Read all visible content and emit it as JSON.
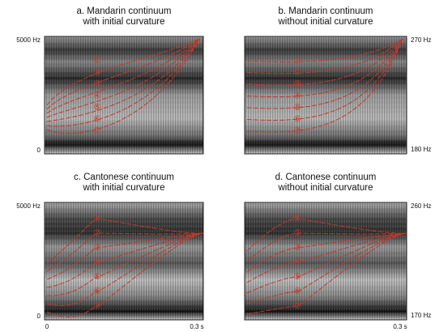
{
  "panels": [
    {
      "title": [
        "a. Mandarin continuum",
        "with initial curvature"
      ],
      "contour_labels": [
        "①",
        "②",
        "③",
        "④",
        "⑤",
        "⑥",
        "⑦"
      ],
      "left_axis": {
        "top": "5000 Hz",
        "bottom": "0"
      }
    },
    {
      "title": [
        "b. Mandarin continuum",
        "without initial curvature"
      ],
      "contour_labels": [
        "①",
        "②",
        "③",
        "④",
        "⑤",
        "⑥",
        "⑦"
      ],
      "right_axis": {
        "top": "270 Hz",
        "bottom": "180 Hz"
      }
    },
    {
      "title": [
        "c. Cantonese continuum",
        "with initial curvature"
      ],
      "contour_labels": [
        "①",
        "②",
        "③",
        "④",
        "⑤",
        "⑥",
        "⑦"
      ],
      "left_axis": {
        "top": "5000 Hz",
        "bottom": "0"
      },
      "time_axis": {
        "start": "0",
        "end": "0.3 s"
      }
    },
    {
      "title": [
        "d. Cantonese continuum",
        "without initial curvature"
      ],
      "contour_labels": [
        "①",
        "②",
        "③",
        "④",
        "⑤",
        "⑥",
        "⑦"
      ],
      "right_axis": {
        "top": "260 Hz",
        "bottom": "170 Hz"
      },
      "time_axis": {
        "end": "0.3 s"
      }
    }
  ]
}
